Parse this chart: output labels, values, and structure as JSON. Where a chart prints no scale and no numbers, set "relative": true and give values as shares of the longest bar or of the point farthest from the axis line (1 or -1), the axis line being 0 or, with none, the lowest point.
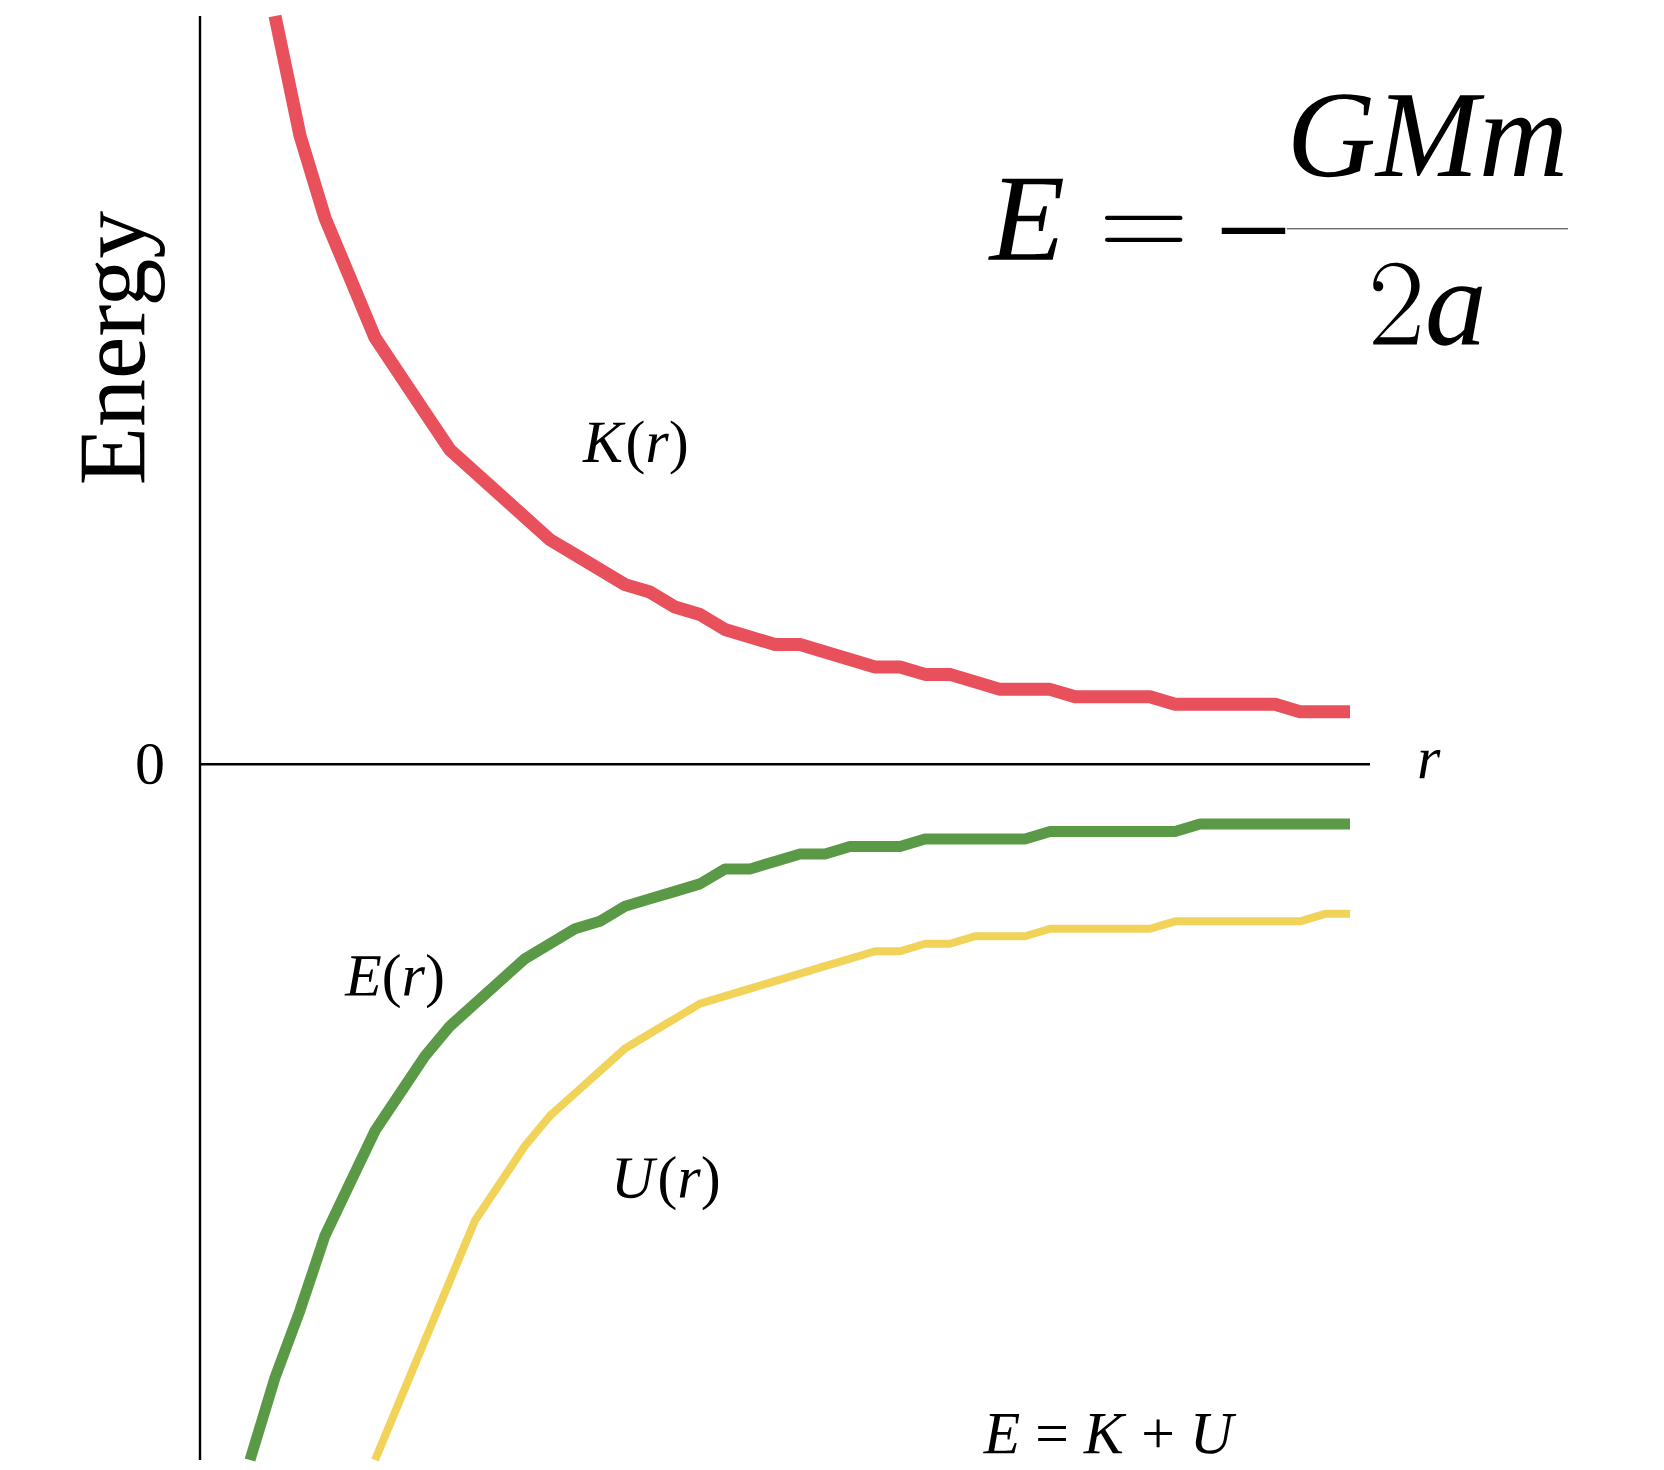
{
  "chart_data": {
    "type": "line",
    "relative": true,
    "xlabel": "*r*",
    "ylabel": "Energy",
    "categories": [
      null,
      null,
      null,
      null,
      null,
      null,
      null,
      null,
      null,
      null,
      null,
      null,
      null,
      null,
      null,
      null,
      null,
      null,
      null,
      null,
      null,
      null,
      null,
      null,
      null,
      null,
      null,
      null,
      null,
      null,
      null,
      null,
      null,
      null,
      null,
      null,
      null,
      null,
      null,
      null,
      null,
      null,
      null,
      null,
      null
    ],
    "series": [
      {
        "name": "*K*(*r*)",
        "color": "#e8505b",
        "values": [
          null,
          1.0,
          0.84,
          0.73,
          0.65,
          0.57,
          0.52,
          0.47,
          0.42,
          0.39,
          0.36,
          0.33,
          0.3,
          0.28,
          0.26,
          0.24,
          0.23,
          0.21,
          0.2,
          0.18,
          0.17,
          0.16,
          0.16,
          0.15,
          0.14,
          0.13,
          0.13,
          0.12,
          0.12,
          0.11,
          0.1,
          0.1,
          0.1,
          0.09,
          0.09,
          0.09,
          0.09,
          0.08,
          0.08,
          0.08,
          0.08,
          0.08,
          0.07,
          0.07,
          0.07
        ]
      },
      {
        "name": "*E*(*r*)",
        "color": "#5a9a46",
        "values": [
          -0.93,
          -0.82,
          -0.73,
          -0.63,
          -0.56,
          -0.49,
          -0.44,
          -0.39,
          -0.35,
          -0.32,
          -0.29,
          -0.26,
          -0.24,
          -0.22,
          -0.21,
          -0.19,
          -0.18,
          -0.17,
          -0.16,
          -0.14,
          -0.14,
          -0.13,
          -0.12,
          -0.12,
          -0.11,
          -0.11,
          -0.11,
          -0.1,
          -0.1,
          -0.1,
          -0.1,
          -0.1,
          -0.09,
          -0.09,
          -0.09,
          -0.09,
          -0.09,
          -0.09,
          -0.08,
          -0.08,
          -0.08,
          -0.08,
          -0.08,
          -0.08,
          -0.08
        ]
      },
      {
        "name": "*U*(*r*)",
        "color": "#f2d35a",
        "values": [
          null,
          null,
          null,
          null,
          null,
          -0.93,
          -0.85,
          -0.77,
          -0.69,
          -0.61,
          -0.56,
          -0.51,
          -0.47,
          -0.44,
          -0.41,
          -0.38,
          -0.36,
          -0.34,
          -0.32,
          -0.31,
          -0.3,
          -0.29,
          -0.28,
          -0.27,
          -0.26,
          -0.25,
          -0.25,
          -0.24,
          -0.24,
          -0.23,
          -0.23,
          -0.23,
          -0.22,
          -0.22,
          -0.22,
          -0.22,
          -0.22,
          -0.21,
          -0.21,
          -0.21,
          -0.21,
          -0.21,
          -0.21,
          -0.2,
          -0.2
        ]
      }
    ],
    "annotations": [
      "0",
      "E=-\\frac{GMm}{2a}",
      "*E* = *K* + *U*"
    ]
  }
}
